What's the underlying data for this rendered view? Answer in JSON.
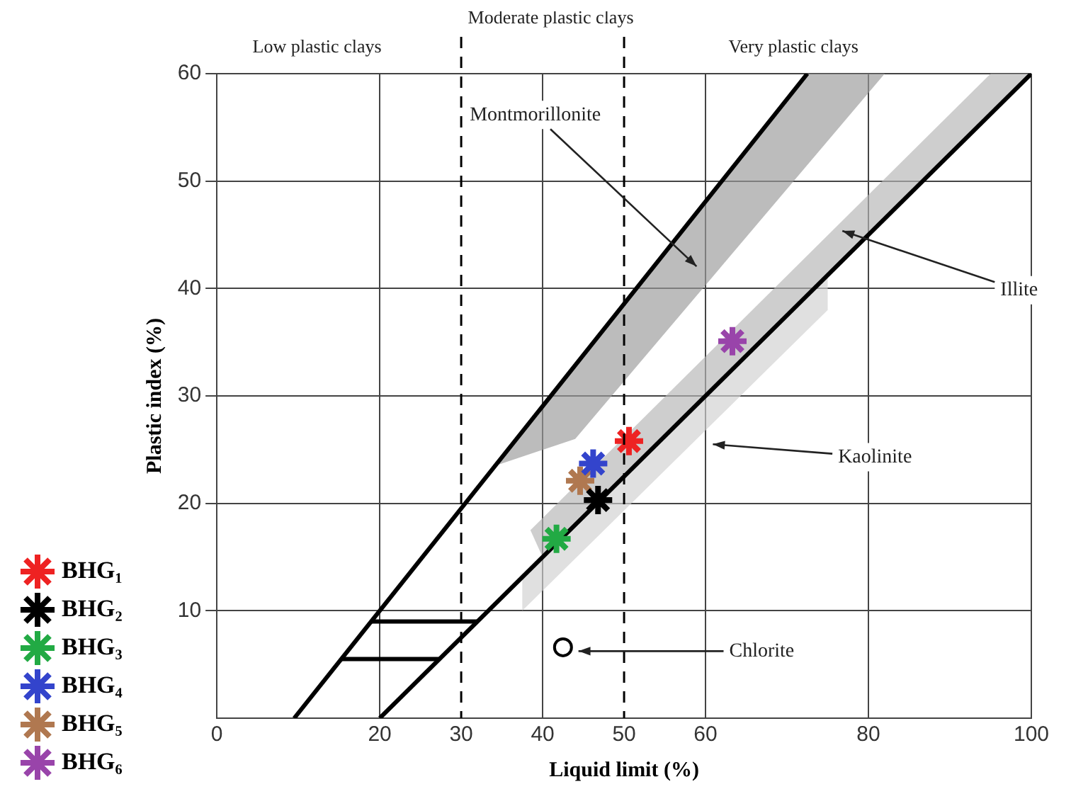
{
  "chart_data": {
    "type": "scatter",
    "xlabel": "Liquid limit (%)",
    "ylabel": "Plastic index (%)",
    "xlim": [
      0,
      100
    ],
    "xticks": [
      0,
      20,
      30,
      40,
      50,
      60,
      80,
      100
    ],
    "ylim": [
      0,
      60
    ],
    "yticks": [
      10,
      20,
      30,
      40,
      50,
      60
    ],
    "grid": true,
    "legend": "bottom left",
    "ref_lines": [
      {
        "axis": "x",
        "value": 30,
        "line_style": "dashed"
      },
      {
        "axis": "x",
        "value": 50,
        "line_style": "dashed"
      }
    ],
    "annotations": [
      "Low plastic clays",
      "Moderate plastic clays",
      "Very plastic clays",
      "Montmorillonite",
      "Illite",
      "Kaolinite",
      "Chlorite"
    ],
    "series": [
      {
        "type": "line",
        "color": "#000000",
        "x": [
          9.5,
          72.5
        ],
        "values": [
          0,
          60
        ]
      },
      {
        "type": "line",
        "color": "#000000",
        "x": [
          20,
          100
        ],
        "values": [
          0,
          60
        ]
      },
      {
        "type": "area",
        "color": "#9a9a9a",
        "x": [
          72.5,
          82,
          44,
          34.2
        ],
        "values": [
          60,
          60,
          26,
          23.5
        ]
      },
      {
        "type": "area",
        "color": "#b5b5b5",
        "x": [
          95,
          100,
          40,
          38.5
        ],
        "values": [
          60,
          60,
          15,
          17.5
        ]
      },
      {
        "type": "area",
        "color": "#d0d0d0",
        "x": [
          37.5,
          75,
          75,
          37.5
        ],
        "values": [
          13.1,
          41.2,
          38,
          10
        ]
      },
      {
        "type": "line",
        "color": "#000000",
        "x": [
          18.95,
          32
        ],
        "values": [
          9,
          9
        ]
      },
      {
        "type": "line",
        "color": "#000000",
        "x": [
          15.3,
          27.3
        ],
        "values": [
          5.5,
          5.5
        ]
      },
      {
        "color": "#000000",
        "marker": "circle",
        "x": [
          42.5
        ],
        "values": [
          6.6
        ]
      },
      {
        "name": "BHG₁",
        "color": "#ee2222",
        "marker": "cross",
        "x": [
          50.6
        ],
        "values": [
          25.8
        ]
      },
      {
        "name": "BHG₂",
        "color": "#000000",
        "marker": "cross",
        "x": [
          46.8
        ],
        "values": [
          20.3
        ]
      },
      {
        "name": "BHG₃",
        "color": "#22aa44",
        "marker": "cross",
        "x": [
          41.7
        ],
        "values": [
          16.7
        ]
      },
      {
        "name": "BHG₄",
        "color": "#3344cc",
        "marker": "cross",
        "x": [
          46.2
        ],
        "values": [
          23.7
        ]
      },
      {
        "name": "BHG₅",
        "color": "#b07850",
        "marker": "cross",
        "x": [
          44.6
        ],
        "values": [
          22.1
        ]
      },
      {
        "name": "BHG₆",
        "color": "#9944aa",
        "marker": "cross",
        "x": [
          63.3
        ],
        "values": [
          35.1
        ]
      }
    ]
  }
}
